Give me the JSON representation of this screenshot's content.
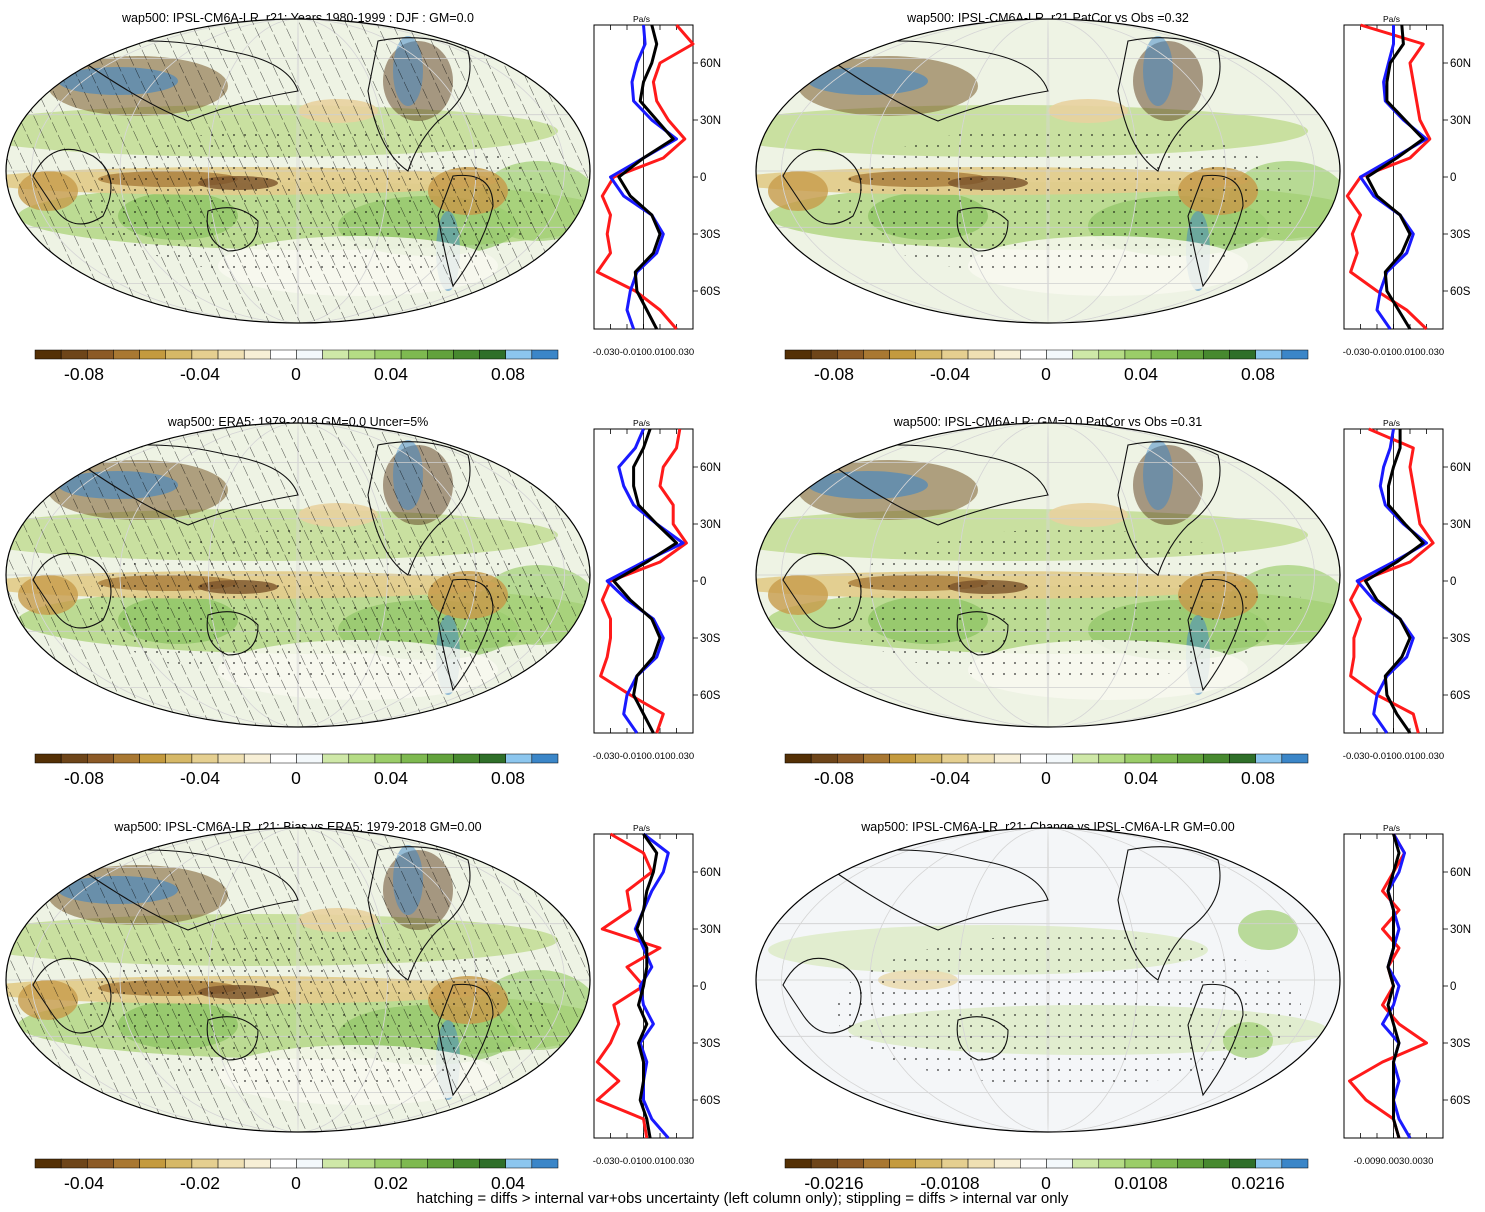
{
  "footer": "hatching = diffs > internal var+obs uncertainty (left column only); stippling = diffs > internal var only",
  "colors": {
    "brown_dark": "#5c3a1c",
    "tan": "#d8b365",
    "cream": "#f6e8c3",
    "white": "#ffffff",
    "green_light": "#c2e699",
    "green_mid": "#78c679",
    "green_dark": "#31a354",
    "blue": "#3182bd",
    "profile_red": "#ff1a1a",
    "profile_blue": "#1a1aff",
    "profile_black": "#000000"
  },
  "chart_data": [
    {
      "type": "map+profile",
      "title": "wap500: IPSL-CM6A-LR_r21: Years 1980-1999 : DJF : GM=0.0",
      "hatched": true,
      "colorbar_ticks": [
        "-0.08",
        "-0.04",
        "0",
        "0.04",
        "0.08"
      ],
      "profile_unit": "Pa/s",
      "profile_xticks": [
        "-0.030",
        "-0.010",
        "0.010",
        "0.030"
      ],
      "profile_xlim": [
        -0.03,
        0.03
      ],
      "profile_ylabels": [
        "60N",
        "30N",
        "0",
        "30S",
        "60S"
      ],
      "lat": [
        80,
        70,
        60,
        50,
        40,
        30,
        20,
        10,
        0,
        -10,
        -20,
        -30,
        -40,
        -50,
        -60,
        -70,
        -80
      ],
      "series": [
        {
          "color": "red",
          "values": [
            0.02,
            0.03,
            0.01,
            0.006,
            0.008,
            0.015,
            0.025,
            0.012,
            -0.018,
            -0.025,
            -0.02,
            -0.022,
            -0.02,
            -0.028,
            -0.005,
            0.01,
            0.02
          ]
        },
        {
          "color": "blue",
          "values": [
            0.0,
            0.001,
            -0.004,
            -0.007,
            -0.006,
            0.005,
            0.02,
            0.0,
            -0.02,
            -0.012,
            0.005,
            0.012,
            0.008,
            -0.004,
            -0.008,
            -0.01,
            -0.006
          ]
        },
        {
          "color": "black",
          "values": [
            0.005,
            0.008,
            0.005,
            0.0,
            -0.002,
            0.008,
            0.018,
            0.0,
            -0.015,
            -0.008,
            0.005,
            0.01,
            0.006,
            -0.005,
            -0.004,
            0.002,
            0.008
          ]
        }
      ]
    },
    {
      "type": "map+profile",
      "title": "wap500: IPSL-CM6A-LR_r21 PatCor vs Obs =0.32",
      "hatched": false,
      "colorbar_ticks": [
        "-0.08",
        "-0.04",
        "0",
        "0.04",
        "0.08"
      ],
      "profile_unit": "Pa/s",
      "profile_xticks": [
        "-0.030",
        "-0.010",
        "0.010",
        "0.030"
      ],
      "profile_xlim": [
        -0.03,
        0.03
      ],
      "profile_ylabels": [
        "60N",
        "30N",
        "0",
        "30S",
        "60S"
      ],
      "lat": [
        80,
        70,
        60,
        50,
        40,
        30,
        20,
        10,
        0,
        -10,
        -20,
        -30,
        -40,
        -50,
        -60,
        -70,
        -80
      ],
      "series": [
        {
          "color": "red",
          "values": [
            -0.02,
            0.018,
            0.01,
            0.012,
            0.014,
            0.016,
            0.022,
            0.01,
            -0.02,
            -0.028,
            -0.02,
            -0.025,
            -0.022,
            -0.026,
            -0.01,
            0.008,
            0.02
          ]
        },
        {
          "color": "blue",
          "values": [
            0.0,
            0.0,
            -0.003,
            -0.006,
            -0.005,
            0.006,
            0.02,
            0.0,
            -0.02,
            -0.012,
            0.004,
            0.012,
            0.008,
            -0.004,
            -0.008,
            -0.01,
            -0.002
          ]
        },
        {
          "color": "black",
          "values": [
            0.005,
            0.006,
            -0.002,
            -0.004,
            -0.004,
            0.007,
            0.018,
            0.002,
            -0.016,
            -0.01,
            0.004,
            0.01,
            0.005,
            -0.005,
            -0.004,
            0.003,
            0.01
          ]
        }
      ]
    },
    {
      "type": "map+profile",
      "title": "wap500: ERA5: 1979-2018 GM=0.0 Uncer=5%",
      "hatched": true,
      "colorbar_ticks": [
        "-0.08",
        "-0.04",
        "0",
        "0.04",
        "0.08"
      ],
      "profile_unit": "Pa/s",
      "profile_xticks": [
        "-0.030",
        "-0.010",
        "0.010",
        "0.030"
      ],
      "profile_xlim": [
        -0.03,
        0.03
      ],
      "profile_ylabels": [
        "60N",
        "30N",
        "0",
        "30S",
        "60S"
      ],
      "lat": [
        80,
        70,
        60,
        50,
        40,
        30,
        20,
        10,
        0,
        -10,
        -20,
        -30,
        -40,
        -50,
        -60,
        -70,
        -80
      ],
      "series": [
        {
          "color": "red",
          "values": [
            0.022,
            0.02,
            0.012,
            0.01,
            0.018,
            0.018,
            0.026,
            0.01,
            -0.02,
            -0.025,
            -0.02,
            -0.02,
            -0.022,
            -0.026,
            -0.008,
            0.012,
            0.008
          ]
        },
        {
          "color": "blue",
          "values": [
            0.0,
            -0.005,
            -0.015,
            -0.012,
            -0.006,
            0.008,
            0.024,
            0.0,
            -0.022,
            -0.01,
            0.006,
            0.012,
            0.008,
            -0.004,
            -0.01,
            -0.012,
            -0.004
          ]
        },
        {
          "color": "black",
          "values": [
            0.004,
            0.0,
            -0.006,
            -0.006,
            -0.003,
            0.008,
            0.02,
            0.002,
            -0.018,
            -0.008,
            0.005,
            0.01,
            0.006,
            -0.004,
            -0.006,
            0.0,
            0.006
          ]
        }
      ]
    },
    {
      "type": "map+profile",
      "title": "wap500: IPSL-CM6A-LR: GM=0.0 PatCor vs Obs =0.31",
      "hatched": false,
      "colorbar_ticks": [
        "-0.08",
        "-0.04",
        "0",
        "0.04",
        "0.08"
      ],
      "profile_unit": "Pa/s",
      "profile_xticks": [
        "-0.030",
        "-0.010",
        "0.010",
        "0.030"
      ],
      "profile_xlim": [
        -0.03,
        0.03
      ],
      "profile_ylabels": [
        "60N",
        "30N",
        "0",
        "30S",
        "60S"
      ],
      "lat": [
        80,
        70,
        60,
        50,
        40,
        30,
        20,
        10,
        0,
        -10,
        -20,
        -30,
        -40,
        -50,
        -60,
        -70,
        -80
      ],
      "series": [
        {
          "color": "red",
          "values": [
            -0.015,
            0.012,
            0.01,
            0.012,
            0.014,
            0.016,
            0.024,
            0.01,
            -0.02,
            -0.026,
            -0.02,
            -0.024,
            -0.024,
            -0.026,
            -0.01,
            0.012,
            0.015
          ]
        },
        {
          "color": "blue",
          "values": [
            0.0,
            -0.002,
            -0.006,
            -0.008,
            -0.005,
            0.006,
            0.02,
            0.0,
            -0.022,
            -0.012,
            0.004,
            0.012,
            0.008,
            -0.004,
            -0.01,
            -0.012,
            -0.004
          ]
        },
        {
          "color": "black",
          "values": [
            0.004,
            0.004,
            0.0,
            -0.003,
            -0.003,
            0.007,
            0.018,
            0.002,
            -0.017,
            -0.01,
            0.004,
            0.01,
            0.005,
            -0.005,
            -0.004,
            0.002,
            0.01
          ]
        }
      ]
    },
    {
      "type": "map+profile",
      "title": "wap500: IPSL-CM6A-LR_r21: Bias vs ERA5: 1979-2018 GM=0.00",
      "hatched": true,
      "colorbar_ticks": [
        "-0.04",
        "-0.02",
        "0",
        "0.02",
        "0.04"
      ],
      "profile_unit": "Pa/s",
      "profile_xticks": [
        "-0.030",
        "-0.010",
        "0.010",
        "0.030"
      ],
      "profile_xlim": [
        -0.03,
        0.03
      ],
      "profile_ylabels": [
        "60N",
        "30N",
        "0",
        "30S",
        "60S"
      ],
      "lat": [
        80,
        70,
        60,
        50,
        40,
        30,
        20,
        10,
        0,
        -10,
        -20,
        -30,
        -40,
        -50,
        -60,
        -70,
        -80
      ],
      "series": [
        {
          "color": "red",
          "values": [
            -0.02,
            0.0,
            0.005,
            -0.01,
            -0.008,
            -0.025,
            0.01,
            -0.01,
            0.0,
            -0.018,
            -0.015,
            -0.02,
            -0.028,
            -0.015,
            -0.028,
            0.0,
            0.002
          ]
        },
        {
          "color": "blue",
          "values": [
            0.0,
            0.015,
            0.012,
            0.005,
            0.0,
            -0.005,
            0.0,
            0.005,
            -0.002,
            0.0,
            0.006,
            -0.002,
            0.002,
            0.0,
            0.0,
            0.005,
            0.015
          ]
        },
        {
          "color": "black",
          "values": [
            0.0,
            0.008,
            0.006,
            0.002,
            0.0,
            -0.004,
            0.002,
            0.002,
            0.0,
            -0.003,
            0.002,
            -0.003,
            0.0,
            0.0,
            -0.002,
            0.002,
            0.004
          ]
        }
      ]
    },
    {
      "type": "map+profile",
      "title": "wap500: IPSL-CM6A-LR_r21: Change vs IPSL-CM6A-LR GM=0.00",
      "hatched": false,
      "colorbar_ticks": [
        "-0.0216",
        "-0.0108",
        "0",
        "0.0108",
        "0.0216"
      ],
      "profile_unit": "Pa/s",
      "profile_xticks": [
        "-0.009",
        "0.003",
        "0.003",
        "0.009"
      ],
      "profile_xticks_label": "-0.0090.0030.0030",
      "profile_xlim": [
        -0.009,
        0.009
      ],
      "profile_ylabels": [
        "60N",
        "30N",
        "0",
        "30S",
        "60S"
      ],
      "lat": [
        80,
        70,
        60,
        50,
        40,
        30,
        20,
        10,
        0,
        -10,
        -20,
        -30,
        -40,
        -50,
        -60,
        -70,
        -80
      ],
      "series": [
        {
          "color": "red",
          "values": [
            0.0,
            0.002,
            0.0,
            -0.002,
            0.001,
            -0.002,
            0.001,
            -0.001,
            0.0,
            -0.002,
            0.001,
            0.006,
            -0.002,
            -0.008,
            -0.005,
            0.0,
            0.001
          ]
        },
        {
          "color": "blue",
          "values": [
            0.0,
            0.002,
            0.001,
            -0.001,
            0.0,
            0.001,
            0.0,
            -0.001,
            0.001,
            0.0,
            -0.002,
            0.001,
            0.0,
            0.001,
            0.0,
            0.001,
            0.003
          ]
        },
        {
          "color": "black",
          "values": [
            0.0,
            0.001,
            0.0,
            -0.001,
            0.0,
            0.0,
            0.0,
            -0.001,
            0.0,
            -0.001,
            0.0,
            0.001,
            0.0,
            0.0,
            0.0,
            0.0,
            0.001
          ]
        }
      ]
    }
  ]
}
